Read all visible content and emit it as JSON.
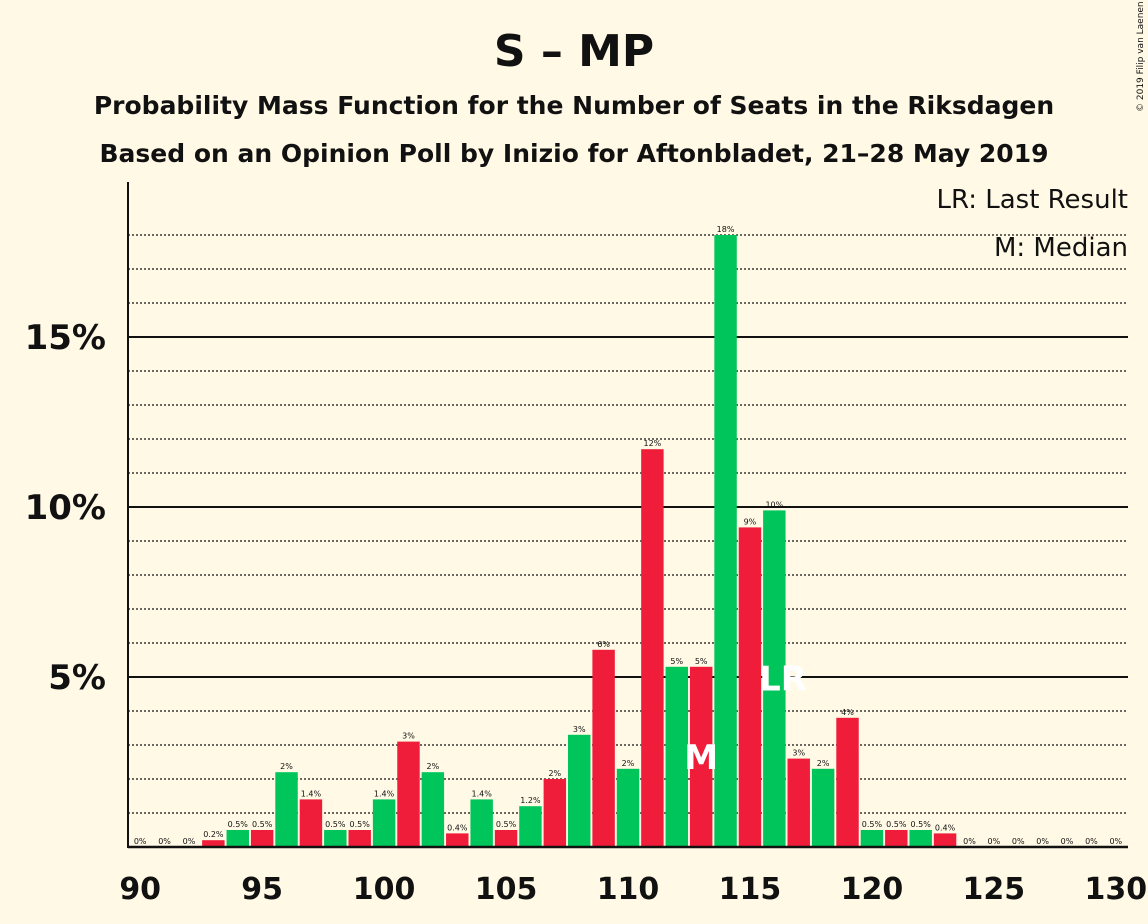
{
  "colors": {
    "background": "#fff9e5",
    "green": "#00c55a",
    "red": "#ef1d3a",
    "text": "#111111"
  },
  "chart_data": {
    "type": "bar",
    "title": "S – MP",
    "subtitle1": "Probability Mass Function for the Number of Seats in the Riksdagen",
    "subtitle2": "Based on an Opinion Poll by Inizio for Aftonbladet, 21–28 May 2019",
    "copyright": "© 2019 Filip van Laenen",
    "legend": {
      "last_result": "LR: Last Result",
      "median": "M: Median",
      "placement": "top-right"
    },
    "xlim": [
      90,
      130
    ],
    "ylim": [
      0,
      0.19
    ],
    "x_ticks": [
      90,
      95,
      100,
      105,
      110,
      115,
      120,
      125,
      130
    ],
    "x_tick_labels": [
      "90",
      "95",
      "100",
      "105",
      "110",
      "115",
      "120",
      "125",
      "130"
    ],
    "y_ticks": [
      0.05,
      0.1,
      0.15
    ],
    "y_tick_labels": [
      "5%",
      "10%",
      "15%"
    ],
    "minor_gridlines": [
      0.01,
      0.02,
      0.03,
      0.04,
      0.06,
      0.07,
      0.08,
      0.09,
      0.11,
      0.12,
      0.13,
      0.14,
      0.16,
      0.17,
      0.18
    ],
    "bar_colors_alternate": [
      "green",
      "red"
    ],
    "seats": [
      90,
      91,
      92,
      93,
      94,
      95,
      96,
      97,
      98,
      99,
      100,
      101,
      102,
      103,
      104,
      105,
      106,
      107,
      108,
      109,
      110,
      111,
      112,
      113,
      114,
      115,
      116,
      117,
      118,
      119,
      120,
      121,
      122,
      123,
      124,
      125,
      126,
      127,
      128,
      129,
      130
    ],
    "values": [
      0,
      0,
      0,
      0.002,
      0.005,
      0.005,
      0.022,
      0.014,
      0.005,
      0.005,
      0.014,
      0.031,
      0.022,
      0.004,
      0.014,
      0.005,
      0.012,
      0.02,
      0.033,
      0.058,
      0.023,
      0.117,
      0.053,
      0.053,
      0.18,
      0.094,
      0.099,
      0.026,
      0.023,
      0.038,
      0.005,
      0.005,
      0.005,
      0.004,
      0,
      0,
      0,
      0,
      0,
      0,
      0
    ],
    "labels": [
      "0%",
      "0%",
      "0%",
      "0.2%",
      "0.5%",
      "0.5%",
      "2%",
      "1.4%",
      "0.5%",
      "0.5%",
      "1.4%",
      "3%",
      "2%",
      "0.4%",
      "1.4%",
      "0.5%",
      "1.2%",
      "2%",
      "3%",
      "6%",
      "2%",
      "12%",
      "5%",
      "5%",
      "18%",
      "9%",
      "10%",
      "3%",
      "2%",
      "4%",
      "0.5%",
      "0.5%",
      "0.5%",
      "0.4%",
      "0%",
      "0%",
      "0%",
      "0%",
      "0%",
      "0%",
      "0%"
    ],
    "median_seat": 113,
    "median_marker": "M",
    "last_result_seat": 116,
    "last_result_marker": "LR"
  }
}
